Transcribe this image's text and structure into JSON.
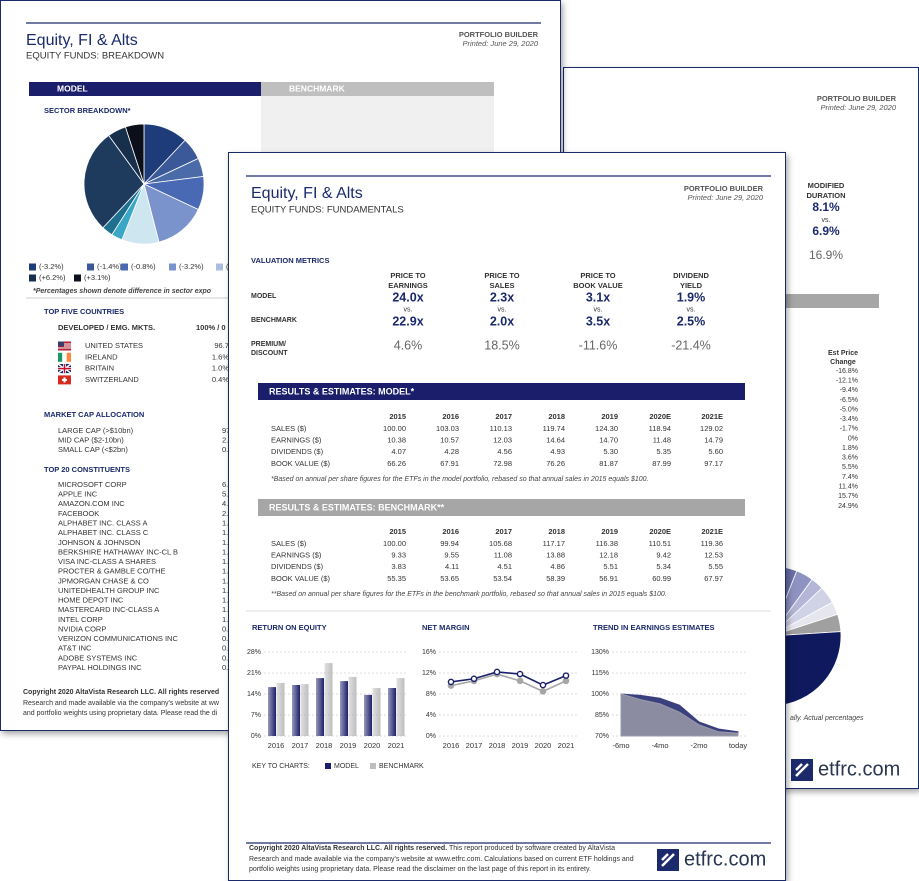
{
  "back_left": {
    "header": {
      "title": "Equity, FI & Alts",
      "subtitle": "EQUITY FUNDS: BREAKDOWN",
      "builder": "PORTFOLIO BUILDER",
      "printed": "Printed: June 29, 2020"
    },
    "tabs": [
      "MODEL",
      "BENCHMARK"
    ],
    "sector_title": "SECTOR BREAKDOWN*",
    "sector_legend": [
      "(-3.2%)",
      "(-1.4%)",
      "(-0.8%)",
      "(-3.2%)",
      "(",
      "(+6.2%)",
      "(+3.1%)"
    ],
    "sector_note": "*Percentages shown denote difference in sector expo",
    "countries": {
      "title": "TOP FIVE COUNTRIES",
      "head_label": "DEVELOPED / EMG. MKTS.",
      "head_value": "100% / 0",
      "rows": [
        [
          "UNITED STATES",
          "96.7"
        ],
        [
          "IRELAND",
          "1.6%"
        ],
        [
          "BRITAIN",
          "1.0%"
        ],
        [
          "SWITZERLAND",
          "0.4%"
        ]
      ]
    },
    "market_cap": {
      "title": "MARKET CAP ALLOCATION",
      "rows": [
        [
          "LARGE CAP (>$10bn)",
          "97."
        ],
        [
          "MID CAP ($2-10bn)",
          "2."
        ],
        [
          "SMALL CAP (<$2bn)",
          "0."
        ]
      ]
    },
    "constituents": {
      "title": "TOP 20 CONSTITUENTS",
      "rows": [
        [
          "MICROSOFT CORP",
          "6."
        ],
        [
          "APPLE INC",
          "5."
        ],
        [
          "AMAZON.COM INC",
          "4."
        ],
        [
          "FACEBOOK",
          "2."
        ],
        [
          "ALPHABET INC. CLASS A",
          "1."
        ],
        [
          "ALPHABET INC. CLASS C",
          "1."
        ],
        [
          "JOHNSON & JOHNSON",
          "1."
        ],
        [
          "BERKSHIRE HATHAWAY INC-CL B",
          "1."
        ],
        [
          "VISA INC-CLASS A SHARES",
          "1."
        ],
        [
          "PROCTER & GAMBLE CO/THE",
          "1."
        ],
        [
          "JPMORGAN CHASE & CO",
          "1."
        ],
        [
          "UNITEDHEALTH GROUP INC",
          "1."
        ],
        [
          "HOME DEPOT INC",
          "1."
        ],
        [
          "MASTERCARD INC-CLASS A",
          "1."
        ],
        [
          "INTEL CORP",
          "1."
        ],
        [
          "NVIDIA CORP",
          "0."
        ],
        [
          "VERIZON COMMUNICATIONS INC",
          "0."
        ],
        [
          "AT&T INC",
          "0."
        ],
        [
          "ADOBE SYSTEMS INC",
          "0."
        ],
        [
          "PAYPAL HOLDINGS INC",
          "0."
        ]
      ]
    },
    "copyright": [
      "Copyright 2020 AltaVista Research LLC. All rights reserved",
      "Research and made available via the company's website at ww",
      "and portfolio weights using proprietary data. Please read the di"
    ]
  },
  "back_right": {
    "header": {
      "builder": "PORTFOLIO BUILDER",
      "printed": "Printed: June 29, 2020"
    },
    "duration": {
      "label": [
        "MODIFIED",
        "DURATION"
      ],
      "model": "8.1%",
      "vs": "vs.",
      "benchmark": "6.9%"
    },
    "other_value": "16.9%",
    "price_change": {
      "label": [
        "Est Price",
        "Change"
      ],
      "values": [
        "-16.8%",
        "-12.1%",
        "-9.4%",
        "-6.5%",
        "-5.0%",
        "-3.4%",
        "-1.7%",
        "0%",
        "1.8%",
        "3.6%",
        "5.5%",
        "7.4%",
        "11.4%",
        "15.7%",
        "24.9%"
      ]
    },
    "note": "ally. Actual percentages",
    "logo": "etfrc.com"
  },
  "front": {
    "header": {
      "title": "Equity, FI & Alts",
      "subtitle": "EQUITY FUNDS: FUNDAMENTALS",
      "builder": "PORTFOLIO BUILDER",
      "printed": "Printed: June 29, 2020"
    },
    "valuation": {
      "title": "VALUATION METRICS",
      "columns": [
        [
          "PRICE TO",
          "EARNINGS"
        ],
        [
          "PRICE TO",
          "SALES"
        ],
        [
          "PRICE TO",
          "BOOK VALUE"
        ],
        [
          "DIVIDEND",
          "YIELD"
        ]
      ],
      "row_labels": {
        "model": "MODEL",
        "benchmark": "BENCHMARK",
        "premium": [
          "PREMIUM/",
          "DISCOUNT"
        ]
      },
      "model": [
        "24.0x",
        "2.3x",
        "3.1x",
        "1.9%"
      ],
      "vs": "vs.",
      "benchmark": [
        "22.9x",
        "2.0x",
        "3.5x",
        "2.5%"
      ],
      "premium": [
        "4.6%",
        "18.5%",
        "-11.6%",
        "-21.4%"
      ]
    },
    "results_model": {
      "title": "RESULTS & ESTIMATES: MODEL*",
      "years": [
        "2015",
        "2016",
        "2017",
        "2018",
        "2019",
        "2020E",
        "2021E"
      ],
      "rows": [
        {
          "label": "SALES ($)",
          "values": [
            "100.00",
            "103.03",
            "110.13",
            "119.74",
            "124.30",
            "118.94",
            "129.02"
          ]
        },
        {
          "label": "EARNINGS ($)",
          "values": [
            "10.38",
            "10.57",
            "12.03",
            "14.64",
            "14.70",
            "11.48",
            "14.79"
          ]
        },
        {
          "label": "DIVIDENDS ($)",
          "values": [
            "4.07",
            "4.28",
            "4.56",
            "4.93",
            "5.30",
            "5.35",
            "5.60"
          ]
        },
        {
          "label": "BOOK VALUE ($)",
          "values": [
            "66.26",
            "67.91",
            "72.98",
            "76.26",
            "81.87",
            "87.99",
            "97.17"
          ]
        }
      ],
      "note": "*Based on annual per share figures for the ETFs in the model portfolio, rebased so that annual sales in 2015 equals $100."
    },
    "results_benchmark": {
      "title": "RESULTS & ESTIMATES: BENCHMARK**",
      "years": [
        "2015",
        "2016",
        "2017",
        "2018",
        "2019",
        "2020E",
        "2021E"
      ],
      "rows": [
        {
          "label": "SALES ($)",
          "values": [
            "100.00",
            "99.94",
            "105.68",
            "117.17",
            "116.38",
            "110.51",
            "119.36"
          ]
        },
        {
          "label": "EARNINGS ($)",
          "values": [
            "9.33",
            "9.55",
            "11.08",
            "13.88",
            "12.18",
            "9.42",
            "12.53"
          ]
        },
        {
          "label": "DIVIDENDS ($)",
          "values": [
            "3.83",
            "4.11",
            "4.51",
            "4.86",
            "5.51",
            "5.34",
            "5.55"
          ]
        },
        {
          "label": "BOOK VALUE ($)",
          "values": [
            "55.35",
            "53.65",
            "53.54",
            "58.39",
            "56.91",
            "60.99",
            "67.97"
          ]
        }
      ],
      "note": "**Based on annual per share figures for the ETFs in the benchmark portfolio, rebased so that annual sales in 2015 equals $100."
    },
    "key": {
      "label": "KEY TO CHARTS:"
    },
    "footer": {
      "lead": "Copyright 2020 AltaVista Research LLC. All rights reserved.",
      "text": " This report produced by software created by AltaVista Research and made available via the company's website at www.etfrc.com. Calculations based on current ETF holdings and portfolio weights using proprietary data. Please read the disclaimer on the last page of this report in its entirety.",
      "logo": "etfrc.com"
    }
  },
  "chart_data": [
    {
      "type": "bar",
      "title": "RETURN ON EQUITY",
      "categories": [
        "2016",
        "2017",
        "2018",
        "2019",
        "2020",
        "2021"
      ],
      "series": [
        {
          "name": "MODEL",
          "color": "#1b1f6b",
          "values": [
            16.3,
            17.0,
            19.3,
            18.3,
            13.7,
            16.0
          ]
        },
        {
          "name": "BENCHMARK",
          "color": "#bdbdbd",
          "values": [
            17.7,
            17.3,
            24.3,
            19.7,
            16.0,
            19.3
          ]
        }
      ],
      "ylim": [
        0,
        28
      ],
      "yticks": [
        {
          "value": 0,
          "label": "0%"
        },
        {
          "value": 7,
          "label": "7%"
        },
        {
          "value": 14,
          "label": "14%"
        },
        {
          "value": 21,
          "label": "21%"
        },
        {
          "value": 28,
          "label": "28%"
        }
      ],
      "grid": true
    },
    {
      "type": "line",
      "title": "NET MARGIN",
      "categories": [
        "2016",
        "2017",
        "2018",
        "2019",
        "2020",
        "2021"
      ],
      "series": [
        {
          "name": "MODEL",
          "color": "#1b1f6b",
          "values": [
            10.3,
            10.9,
            12.2,
            11.8,
            9.7,
            11.5
          ]
        },
        {
          "name": "BENCHMARK",
          "color": "#a6a6a6",
          "values": [
            9.6,
            10.5,
            11.8,
            10.5,
            8.5,
            10.5
          ]
        }
      ],
      "ylim": [
        0,
        16
      ],
      "yticks": [
        {
          "value": 0,
          "label": "0%"
        },
        {
          "value": 4,
          "label": "4%"
        },
        {
          "value": 8,
          "label": "8%"
        },
        {
          "value": 12,
          "label": "12%"
        },
        {
          "value": 16,
          "label": "16%"
        }
      ],
      "grid": true
    },
    {
      "type": "area",
      "title": "TREND IN EARNINGS ESTIMATES",
      "categories": [
        "-6mo",
        null,
        "-4mo",
        null,
        "-2mo",
        null,
        "today"
      ],
      "series": [
        {
          "name": "MODEL",
          "color": "#3a3f7e",
          "values": [
            100,
            99,
            97,
            92,
            80,
            75,
            73
          ]
        },
        {
          "name": "BENCHMARK",
          "color": "#9a9aa8",
          "values": [
            100,
            96,
            93,
            87,
            78,
            73,
            72
          ]
        }
      ],
      "ylim": [
        70,
        130
      ],
      "yticks": [
        {
          "value": 70,
          "label": "70%"
        },
        {
          "value": 85,
          "label": "85%"
        },
        {
          "value": 100,
          "label": "100%"
        },
        {
          "value": 115,
          "label": "115%"
        },
        {
          "value": 130,
          "label": "130%"
        }
      ],
      "grid": true
    },
    {
      "type": "pie",
      "values": [
        12,
        6,
        5,
        9,
        14,
        10,
        3,
        3,
        28,
        5,
        5
      ],
      "colors": [
        "#1f3c7a",
        "#3b5998",
        "#4a6aa8",
        "#4a69b4",
        "#7b93cc",
        "#cde6ef",
        "#3aa7c7",
        "#1f6f8f",
        "#1e3a5c",
        "#172f4a",
        "#0a0f1a"
      ]
    },
    {
      "type": "pie",
      "values": [
        3,
        3,
        4,
        3,
        4,
        3,
        4,
        50,
        26
      ],
      "colors": [
        "#4a4f8c",
        "#6a6fa8",
        "#8e92c0",
        "#b3b6d6",
        "#d0d2e6",
        "#e6e6ee",
        "#a0a0a0",
        "#0f1a5e",
        "#2b3170"
      ]
    }
  ]
}
